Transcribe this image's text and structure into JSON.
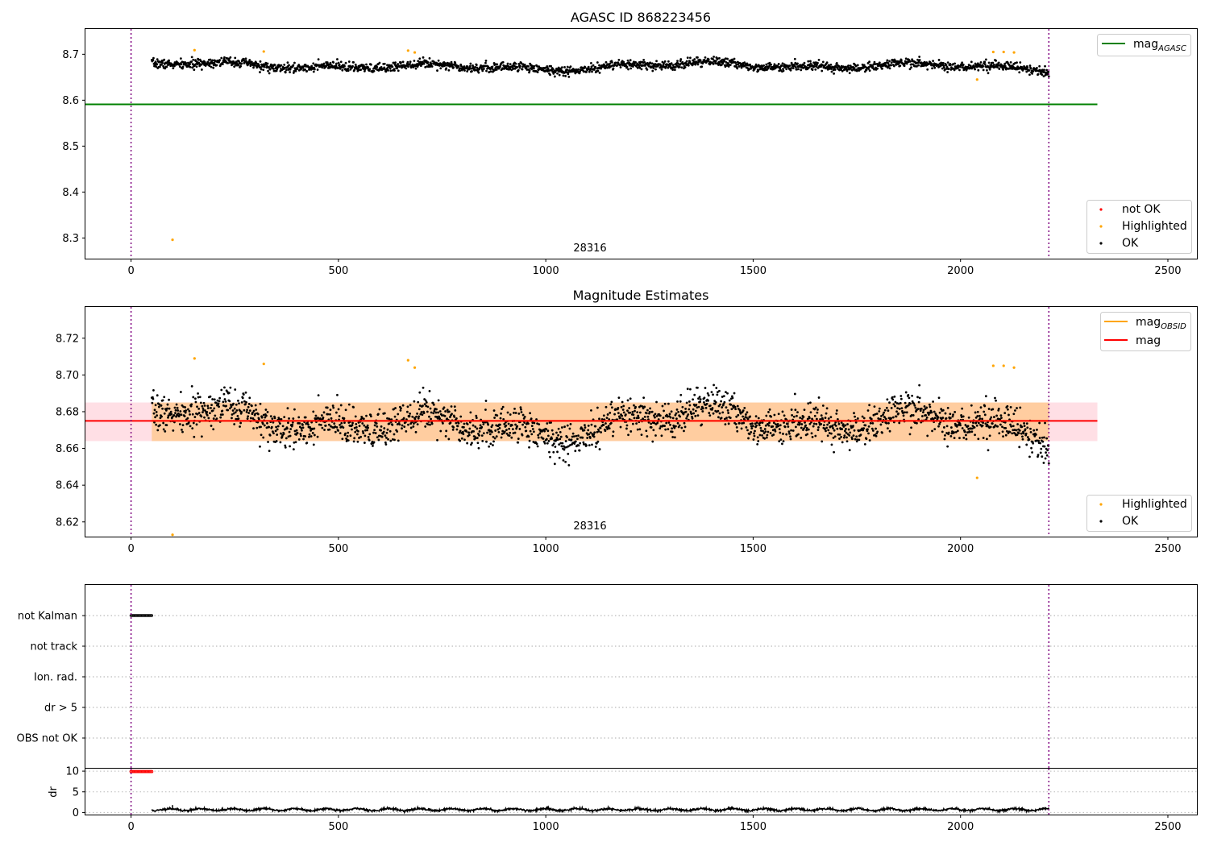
{
  "chart_data": [
    {
      "type": "scatter",
      "title": "AGASC ID 868223456",
      "xlim": [
        -110,
        2570
      ],
      "ylim": [
        8.255,
        8.755
      ],
      "x_ticks": [
        0,
        500,
        1000,
        1500,
        2000,
        2500
      ],
      "y_ticks": [
        "8.3",
        "8.4",
        "8.5",
        "8.6",
        "8.7"
      ],
      "annotation": "28316",
      "vlines": [
        0,
        2213
      ],
      "hlines": [
        {
          "name": "mag_AGASC",
          "y": 8.591,
          "x_range": [
            -110,
            2330
          ],
          "color": "#008000"
        }
      ],
      "series": [
        {
          "name": "not OK",
          "color": "#ff0000",
          "points": []
        },
        {
          "name": "Highlighted",
          "color": "#ffa500",
          "points": [
            [
              100,
              8.296
            ],
            [
              153,
              8.709
            ],
            [
              320,
              8.706
            ],
            [
              668,
              8.708
            ],
            [
              684,
              8.704
            ],
            [
              2040,
              8.645
            ],
            [
              2079,
              8.705
            ],
            [
              2104,
              8.705
            ],
            [
              2129,
              8.704
            ]
          ]
        },
        {
          "name": "OK",
          "color": "#000000",
          "x_range": [
            50,
            2213
          ],
          "n_points": 2100,
          "median": 8.674,
          "scatter": 0.009
        }
      ],
      "legend": {
        "upper": {
          "position": "top-right",
          "entries": [
            {
              "label": "mag",
              "subscript": "AGASC",
              "color": "#008000",
              "kind": "line"
            }
          ]
        },
        "lower": {
          "position": "bottom-right",
          "entries": [
            {
              "label": "not OK",
              "color": "#ff0000",
              "kind": "dot"
            },
            {
              "label": "Highlighted",
              "color": "#ffa500",
              "kind": "dot"
            },
            {
              "label": "OK",
              "color": "#000000",
              "kind": "dot"
            }
          ]
        }
      }
    },
    {
      "type": "scatter",
      "title": "Magnitude Estimates",
      "xlim": [
        -110,
        2570
      ],
      "ylim": [
        8.612,
        8.737
      ],
      "x_ticks": [
        0,
        500,
        1000,
        1500,
        2000,
        2500
      ],
      "y_ticks": [
        "8.62",
        "8.64",
        "8.66",
        "8.68",
        "8.70",
        "8.72"
      ],
      "annotation": "28316",
      "vlines": [
        0,
        2213
      ],
      "bands": [
        {
          "y_range": [
            8.664,
            8.685
          ],
          "x_range": [
            -110,
            2330
          ],
          "color": "#ffc0cb"
        },
        {
          "y_range": [
            8.664,
            8.685
          ],
          "x_range": [
            50,
            2213
          ],
          "color": "#ffa500"
        }
      ],
      "hlines": [
        {
          "name": "mag_OBSID",
          "y": 8.675,
          "x_range": [
            50,
            2213
          ],
          "color": "#ffa500"
        },
        {
          "name": "mag",
          "y": 8.675,
          "x_range": [
            -110,
            2330
          ],
          "color": "#ff0000"
        }
      ],
      "series": [
        {
          "name": "Highlighted",
          "color": "#ffa500",
          "points": [
            [
              100,
              8.613
            ],
            [
              153,
              8.709
            ],
            [
              320,
              8.706
            ],
            [
              668,
              8.708
            ],
            [
              684,
              8.704
            ],
            [
              2040,
              8.644
            ],
            [
              2079,
              8.705
            ],
            [
              2104,
              8.705
            ],
            [
              2129,
              8.704
            ]
          ]
        },
        {
          "name": "OK",
          "color": "#000000",
          "x_range": [
            50,
            2213
          ],
          "n_points": 2100,
          "median": 8.674,
          "scatter": 0.009
        }
      ],
      "legend": {
        "upper": {
          "position": "top-right",
          "entries": [
            {
              "label": "mag",
              "subscript": "OBSID",
              "color": "#ffa500",
              "kind": "line"
            },
            {
              "label": "mag",
              "subscript": "",
              "color": "#ff0000",
              "kind": "line"
            }
          ]
        },
        "lower": {
          "position": "bottom-right",
          "entries": [
            {
              "label": "Highlighted",
              "color": "#ffa500",
              "kind": "dot"
            },
            {
              "label": "OK",
              "color": "#000000",
              "kind": "dot"
            }
          ]
        }
      }
    },
    {
      "type": "scatter",
      "xlim": [
        -110,
        2570
      ],
      "categories": [
        "not Kalman",
        "not track",
        "Ion. rad.",
        "dr > 5",
        "OBS not OK"
      ],
      "vlines": [
        0,
        2213
      ],
      "flags": [
        {
          "category": "not Kalman",
          "x_range": [
            0,
            50
          ],
          "color": "#000000"
        }
      ]
    },
    {
      "type": "line",
      "ylabel": "dr",
      "xlim": [
        -110,
        2570
      ],
      "ylim": [
        -0.5,
        10.6
      ],
      "x_ticks": [
        0,
        500,
        1000,
        1500,
        2000,
        2500
      ],
      "y_ticks": [
        "0",
        "5",
        "10"
      ],
      "vlines": [
        0,
        2213
      ],
      "series": [
        {
          "name": "dr",
          "color": "#000000",
          "x_range": [
            50,
            2213
          ],
          "median": 0.7,
          "scatter": 0.25
        },
        {
          "name": "dr flagged",
          "color": "#ff0000",
          "points_x_range": [
            0,
            50
          ],
          "y": 9.9
        }
      ]
    }
  ]
}
